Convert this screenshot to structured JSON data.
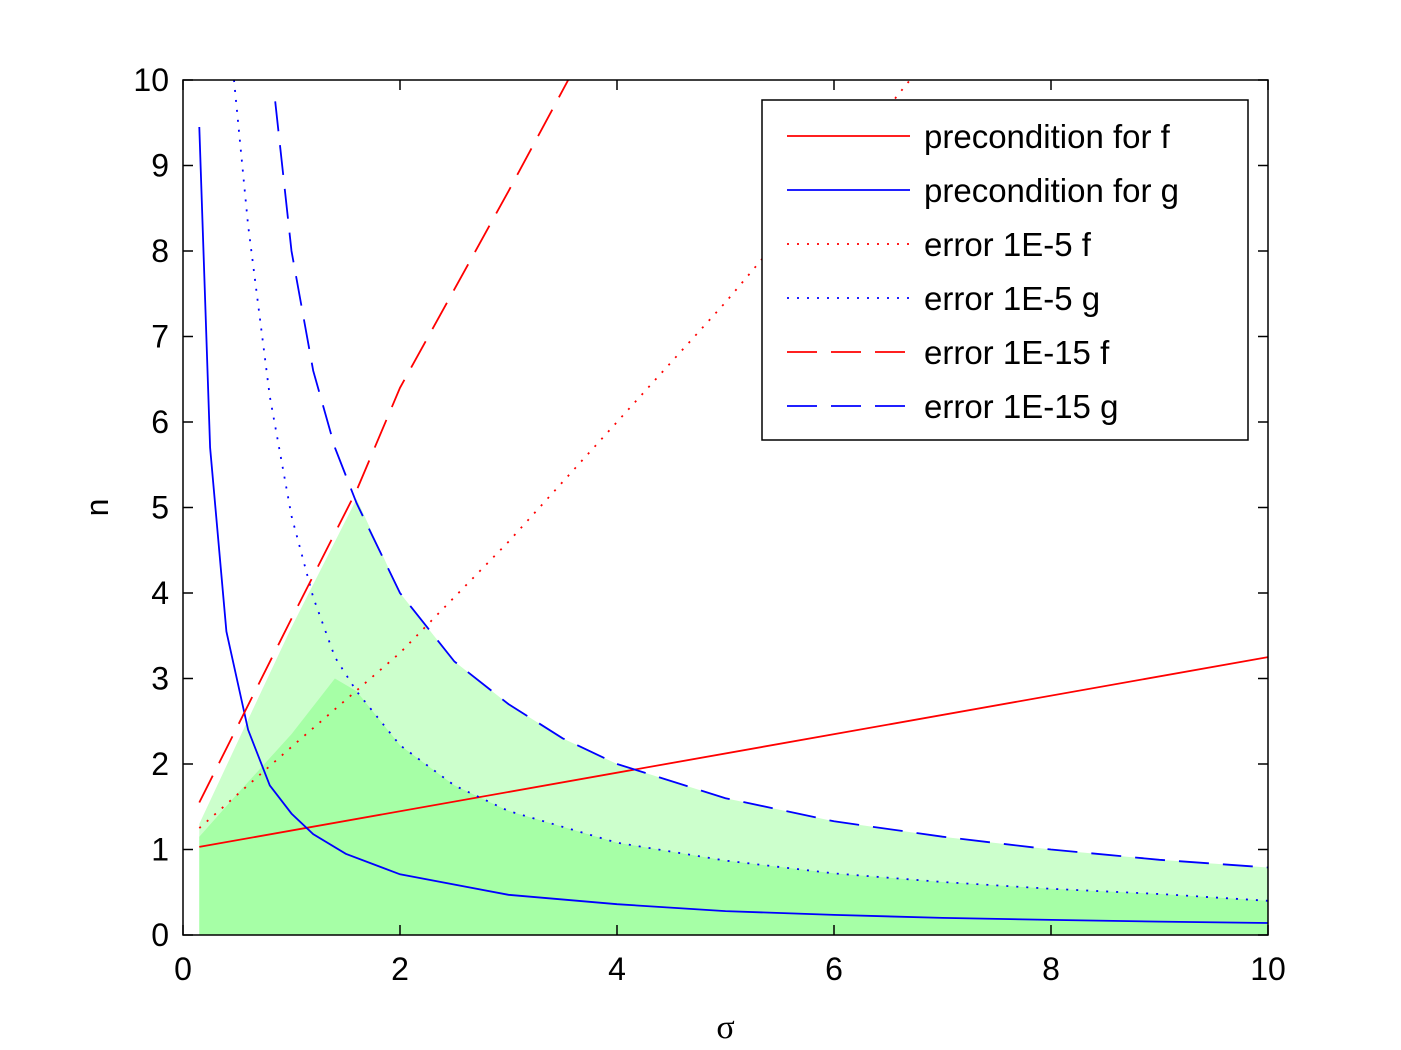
{
  "chart_data": {
    "type": "line",
    "title": "",
    "xlabel": "σ",
    "ylabel": "n",
    "xlim": [
      0,
      10
    ],
    "ylim": [
      0,
      10
    ],
    "xticks": [
      0,
      2,
      4,
      6,
      8,
      10
    ],
    "yticks": [
      0,
      1,
      2,
      3,
      4,
      5,
      6,
      7,
      8,
      9,
      10
    ],
    "grid": false,
    "legend_position": "top-right",
    "series": [
      {
        "name": "precondition for f",
        "color": "#ff0000",
        "style": "solid",
        "points": [
          [
            0.15,
            1.03
          ],
          [
            10,
            3.25
          ]
        ]
      },
      {
        "name": "precondition for g",
        "color": "#0000ff",
        "style": "solid",
        "points": [
          [
            0.15,
            9.45
          ],
          [
            0.25,
            5.7
          ],
          [
            0.4,
            3.55
          ],
          [
            0.6,
            2.4
          ],
          [
            0.8,
            1.75
          ],
          [
            1.0,
            1.42
          ],
          [
            1.2,
            1.18
          ],
          [
            1.5,
            0.95
          ],
          [
            2.0,
            0.71
          ],
          [
            3.0,
            0.47
          ],
          [
            4.0,
            0.36
          ],
          [
            5.0,
            0.28
          ],
          [
            6.0,
            0.235
          ],
          [
            7.0,
            0.2
          ],
          [
            8.0,
            0.177
          ],
          [
            9.0,
            0.157
          ],
          [
            10.0,
            0.14
          ]
        ]
      },
      {
        "name": "error 1E-5 f",
        "color": "#ff0000",
        "style": "dotted",
        "points": [
          [
            0.15,
            1.25
          ],
          [
            1.0,
            2.2
          ],
          [
            2.0,
            3.3
          ],
          [
            3.0,
            4.6
          ],
          [
            4.0,
            6.0
          ],
          [
            5.0,
            7.4
          ],
          [
            6.0,
            8.9
          ],
          [
            6.7,
            10.0
          ]
        ]
      },
      {
        "name": "error 1E-5 g",
        "color": "#0000ff",
        "style": "dotted",
        "points": [
          [
            0.47,
            10.0
          ],
          [
            0.6,
            8.3
          ],
          [
            0.8,
            6.3
          ],
          [
            1.0,
            4.9
          ],
          [
            1.2,
            3.95
          ],
          [
            1.4,
            3.25
          ],
          [
            1.6,
            2.85
          ],
          [
            2.0,
            2.22
          ],
          [
            2.5,
            1.75
          ],
          [
            3.0,
            1.45
          ],
          [
            4.0,
            1.08
          ],
          [
            5.0,
            0.87
          ],
          [
            6.0,
            0.72
          ],
          [
            7.0,
            0.62
          ],
          [
            8.0,
            0.54
          ],
          [
            9.0,
            0.48
          ],
          [
            10.0,
            0.4
          ]
        ]
      },
      {
        "name": "error 1E-15 f",
        "color": "#ff0000",
        "style": "dashed",
        "points": [
          [
            0.15,
            1.55
          ],
          [
            1.0,
            3.7
          ],
          [
            1.6,
            5.2
          ],
          [
            2.0,
            6.4
          ],
          [
            3.0,
            8.7
          ],
          [
            3.55,
            10.0
          ]
        ]
      },
      {
        "name": "error 1E-15 g",
        "color": "#0000ff",
        "style": "dashed",
        "points": [
          [
            0.85,
            9.75
          ],
          [
            1.0,
            8.0
          ],
          [
            1.2,
            6.6
          ],
          [
            1.4,
            5.7
          ],
          [
            1.6,
            5.05
          ],
          [
            2.0,
            4.0
          ],
          [
            2.5,
            3.2
          ],
          [
            3.0,
            2.7
          ],
          [
            3.5,
            2.3
          ],
          [
            4.0,
            2.0
          ],
          [
            5.0,
            1.6
          ],
          [
            6.0,
            1.33
          ],
          [
            7.0,
            1.15
          ],
          [
            8.0,
            1.0
          ],
          [
            9.0,
            0.88
          ],
          [
            10.0,
            0.79
          ]
        ]
      }
    ],
    "fill_regions": [
      {
        "color": "#ccffcc",
        "points": [
          [
            0.15,
            0
          ],
          [
            0.15,
            1.3
          ],
          [
            0.5,
            2.25
          ],
          [
            1.0,
            3.6
          ],
          [
            1.6,
            5.1
          ],
          [
            2.0,
            4.0
          ],
          [
            2.5,
            3.2
          ],
          [
            3.0,
            2.7
          ],
          [
            3.5,
            2.3
          ],
          [
            4.0,
            2.0
          ],
          [
            5.0,
            1.6
          ],
          [
            6.0,
            1.33
          ],
          [
            7.0,
            1.15
          ],
          [
            8.0,
            1.0
          ],
          [
            9.0,
            0.88
          ],
          [
            10.0,
            0.79
          ],
          [
            10.0,
            0
          ]
        ]
      },
      {
        "color": "#a6ffa6",
        "points": [
          [
            0.15,
            0
          ],
          [
            0.15,
            1.15
          ],
          [
            0.5,
            1.65
          ],
          [
            1.0,
            2.35
          ],
          [
            1.4,
            3.0
          ],
          [
            1.6,
            2.85
          ],
          [
            2.0,
            2.22
          ],
          [
            2.5,
            1.75
          ],
          [
            3.0,
            1.45
          ],
          [
            4.0,
            1.08
          ],
          [
            5.0,
            0.87
          ],
          [
            6.0,
            0.72
          ],
          [
            7.0,
            0.62
          ],
          [
            8.0,
            0.54
          ],
          [
            9.0,
            0.48
          ],
          [
            10.0,
            0.4
          ],
          [
            10.0,
            0
          ]
        ]
      }
    ]
  }
}
